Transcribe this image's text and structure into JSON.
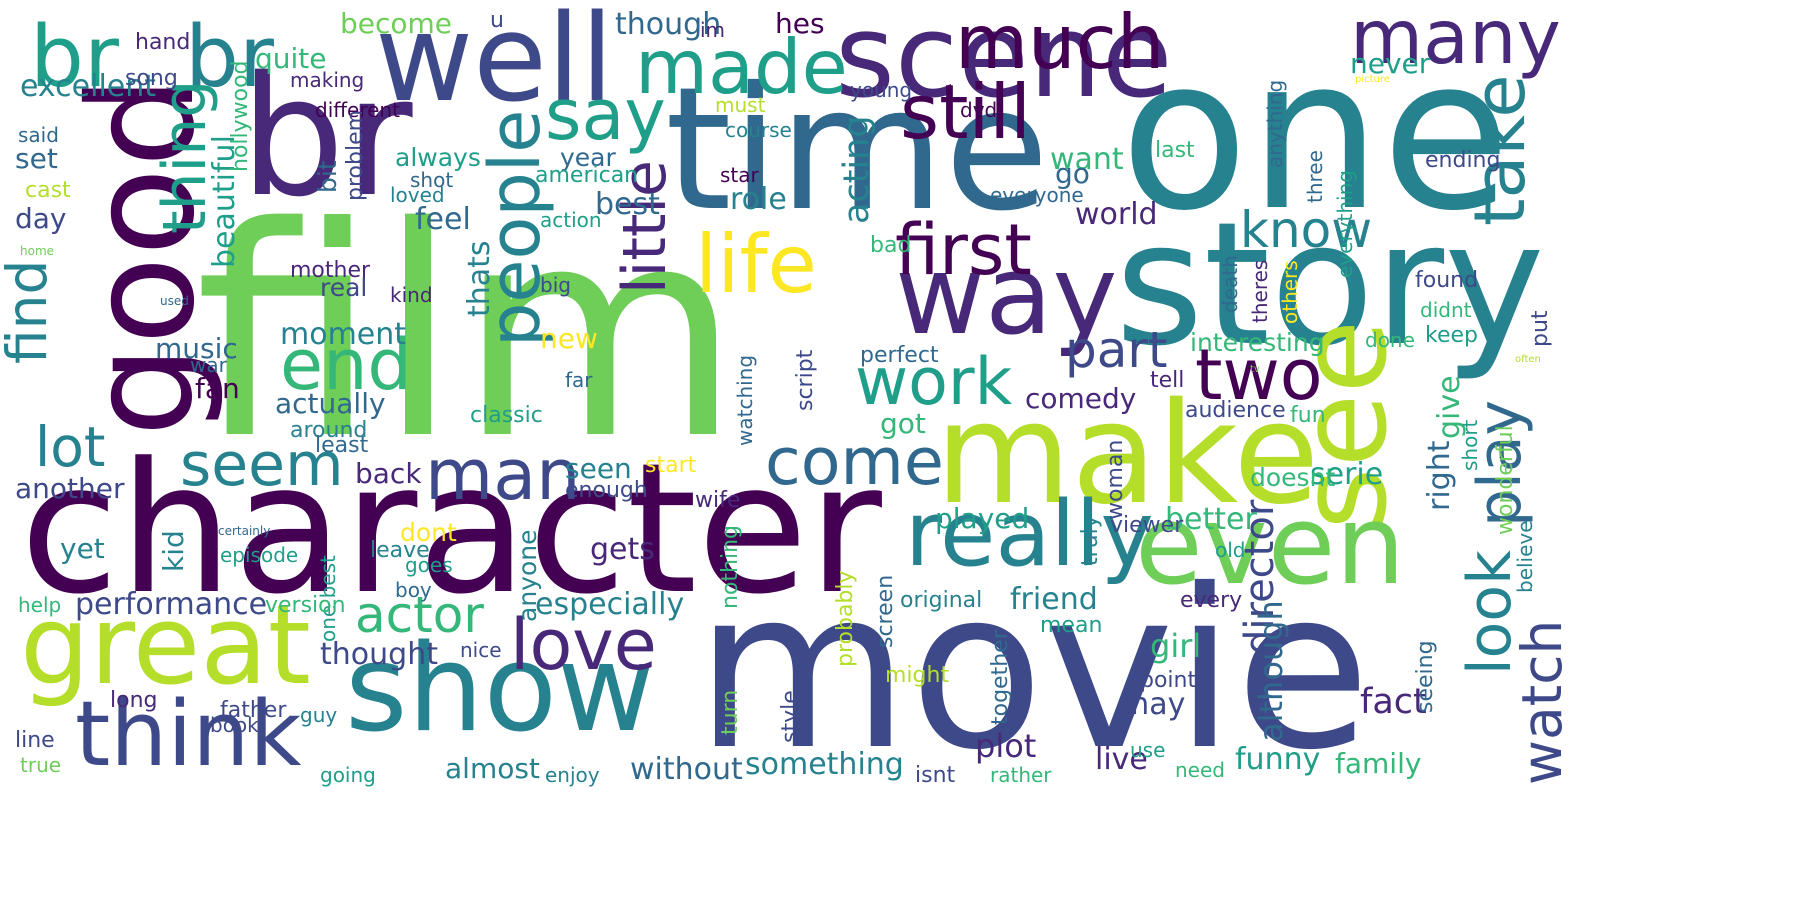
{
  "background": "#ffffff",
  "palette": [
    "#440154",
    "#482878",
    "#3e4989",
    "#31688e",
    "#26828e",
    "#1f9e89",
    "#35b779",
    "#6ece58",
    "#b5de2b",
    "#fde725"
  ],
  "words": [
    {
      "text": "film"
    },
    {
      "text": "movie"
    },
    {
      "text": "one"
    },
    {
      "text": "character"
    },
    {
      "text": "story"
    },
    {
      "text": "time"
    },
    {
      "text": "br"
    },
    {
      "text": "good"
    },
    {
      "text": "make"
    },
    {
      "text": "well"
    },
    {
      "text": "scene"
    },
    {
      "text": "show"
    },
    {
      "text": "see"
    },
    {
      "text": "even"
    },
    {
      "text": "great"
    },
    {
      "text": "really"
    },
    {
      "text": "way"
    },
    {
      "text": "think"
    },
    {
      "text": "much"
    },
    {
      "text": "br"
    },
    {
      "text": "br"
    },
    {
      "text": "many"
    },
    {
      "text": "made"
    },
    {
      "text": "people"
    },
    {
      "text": "life"
    },
    {
      "text": "first"
    },
    {
      "text": "still"
    },
    {
      "text": "say"
    },
    {
      "text": "little"
    },
    {
      "text": "thing"
    },
    {
      "text": "take"
    },
    {
      "text": "end"
    },
    {
      "text": "work"
    },
    {
      "text": "two"
    },
    {
      "text": "man"
    },
    {
      "text": "come"
    },
    {
      "text": "love"
    },
    {
      "text": "seem"
    },
    {
      "text": "look"
    },
    {
      "text": "play"
    },
    {
      "text": "find"
    },
    {
      "text": "know"
    },
    {
      "text": "part"
    },
    {
      "text": "actor"
    },
    {
      "text": "watch"
    },
    {
      "text": "lot"
    },
    {
      "text": "fact"
    },
    {
      "text": "plot"
    },
    {
      "text": "director"
    },
    {
      "text": "funny"
    },
    {
      "text": "family"
    },
    {
      "text": "something"
    },
    {
      "text": "without"
    },
    {
      "text": "almost"
    },
    {
      "text": "live"
    },
    {
      "text": "although"
    },
    {
      "text": "may"
    },
    {
      "text": "girl"
    },
    {
      "text": "better"
    },
    {
      "text": "friend"
    },
    {
      "text": "played"
    },
    {
      "text": "especially"
    },
    {
      "text": "gets"
    },
    {
      "text": "thought"
    },
    {
      "text": "performance"
    },
    {
      "text": "world"
    },
    {
      "text": "serie"
    },
    {
      "text": "acting"
    },
    {
      "text": "role"
    },
    {
      "text": "best"
    },
    {
      "text": "feel"
    },
    {
      "text": "beautiful"
    },
    {
      "text": "moment"
    },
    {
      "text": "music"
    },
    {
      "text": "actually"
    },
    {
      "text": "real"
    },
    {
      "text": "fan"
    },
    {
      "text": "back"
    },
    {
      "text": "another"
    },
    {
      "text": "yet"
    },
    {
      "text": "day"
    },
    {
      "text": "set"
    },
    {
      "text": "excellent"
    },
    {
      "text": "quite"
    },
    {
      "text": "become"
    },
    {
      "text": "though"
    },
    {
      "text": "hes"
    },
    {
      "text": "never"
    },
    {
      "text": "want"
    },
    {
      "text": "go"
    },
    {
      "text": "got"
    },
    {
      "text": "comedy"
    },
    {
      "text": "seen"
    },
    {
      "text": "enough"
    },
    {
      "text": "wife"
    },
    {
      "text": "right"
    },
    {
      "text": "give"
    },
    {
      "text": "audience"
    },
    {
      "text": "doesnt"
    },
    {
      "text": "thats"
    },
    {
      "text": "new"
    },
    {
      "text": "kid"
    },
    {
      "text": "start"
    },
    {
      "text": "year"
    },
    {
      "text": "always"
    },
    {
      "text": "hollywood"
    },
    {
      "text": "hand"
    },
    {
      "text": "song"
    },
    {
      "text": "making"
    },
    {
      "text": "different"
    },
    {
      "text": "said"
    },
    {
      "text": "problem"
    },
    {
      "text": "bit"
    },
    {
      "text": "episode"
    },
    {
      "text": "shot"
    },
    {
      "text": "loved"
    },
    {
      "text": "american"
    },
    {
      "text": "course"
    },
    {
      "text": "star"
    },
    {
      "text": "dvd"
    },
    {
      "text": "must"
    },
    {
      "text": "young"
    },
    {
      "text": "im"
    },
    {
      "text": "u"
    },
    {
      "text": "last"
    },
    {
      "text": "ending"
    },
    {
      "text": "anything"
    },
    {
      "text": "three"
    },
    {
      "text": "everyone"
    },
    {
      "text": "everything"
    },
    {
      "text": "death"
    },
    {
      "text": "theres"
    },
    {
      "text": "others"
    },
    {
      "text": "found"
    },
    {
      "text": "didnt"
    },
    {
      "text": "keep"
    },
    {
      "text": "done"
    },
    {
      "text": "interesting"
    },
    {
      "text": "put"
    },
    {
      "text": "perfect"
    },
    {
      "text": "watching"
    },
    {
      "text": "script"
    },
    {
      "text": "tell"
    },
    {
      "text": "classic"
    },
    {
      "text": "far"
    },
    {
      "text": "war"
    },
    {
      "text": "mother"
    },
    {
      "text": "kind"
    },
    {
      "text": "big"
    },
    {
      "text": "action"
    },
    {
      "text": "bad"
    },
    {
      "text": "cast"
    },
    {
      "text": "home"
    },
    {
      "text": "used"
    },
    {
      "text": "around"
    },
    {
      "text": "least"
    },
    {
      "text": "one best"
    },
    {
      "text": "anyone"
    },
    {
      "text": "dont"
    },
    {
      "text": "leave"
    },
    {
      "text": "goes"
    },
    {
      "text": "boy"
    },
    {
      "text": "certainly"
    },
    {
      "text": "help"
    },
    {
      "text": "version"
    },
    {
      "text": "nothing"
    },
    {
      "text": "probably"
    },
    {
      "text": "screen"
    },
    {
      "text": "original"
    },
    {
      "text": "every"
    },
    {
      "text": "truly"
    },
    {
      "text": "viewer"
    },
    {
      "text": "woman"
    },
    {
      "text": "old"
    },
    {
      "text": "believe"
    },
    {
      "text": "wonderful"
    },
    {
      "text": "short"
    },
    {
      "text": "fun"
    },
    {
      "text": "mean"
    },
    {
      "text": "might"
    },
    {
      "text": "together"
    },
    {
      "text": "point"
    },
    {
      "text": "seeing"
    },
    {
      "text": "turn"
    },
    {
      "text": "style"
    },
    {
      "text": "nice"
    },
    {
      "text": "long"
    },
    {
      "text": "father"
    },
    {
      "text": "guy"
    },
    {
      "text": "book"
    },
    {
      "text": "line"
    },
    {
      "text": "true"
    },
    {
      "text": "going"
    },
    {
      "text": "enjoy"
    },
    {
      "text": "isnt"
    },
    {
      "text": "rather"
    },
    {
      "text": "use"
    },
    {
      "text": "need"
    },
    {
      "text": "tv"
    },
    {
      "text": "often"
    },
    {
      "text": "picture"
    }
  ]
}
